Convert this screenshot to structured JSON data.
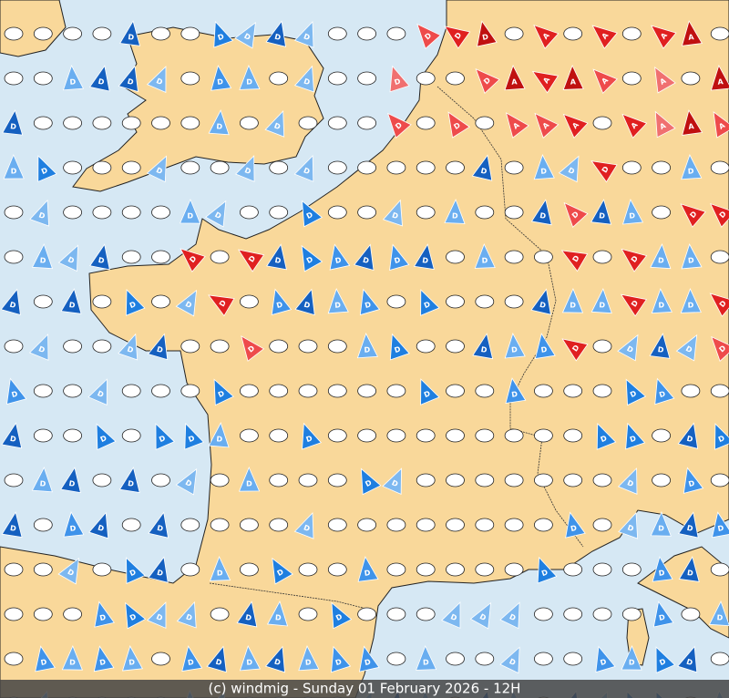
{
  "caption": "(c) windmig - Sunday 01 February 2026 - 12H",
  "marker_letters": {
    "d": "D",
    "a": "A"
  }
}
